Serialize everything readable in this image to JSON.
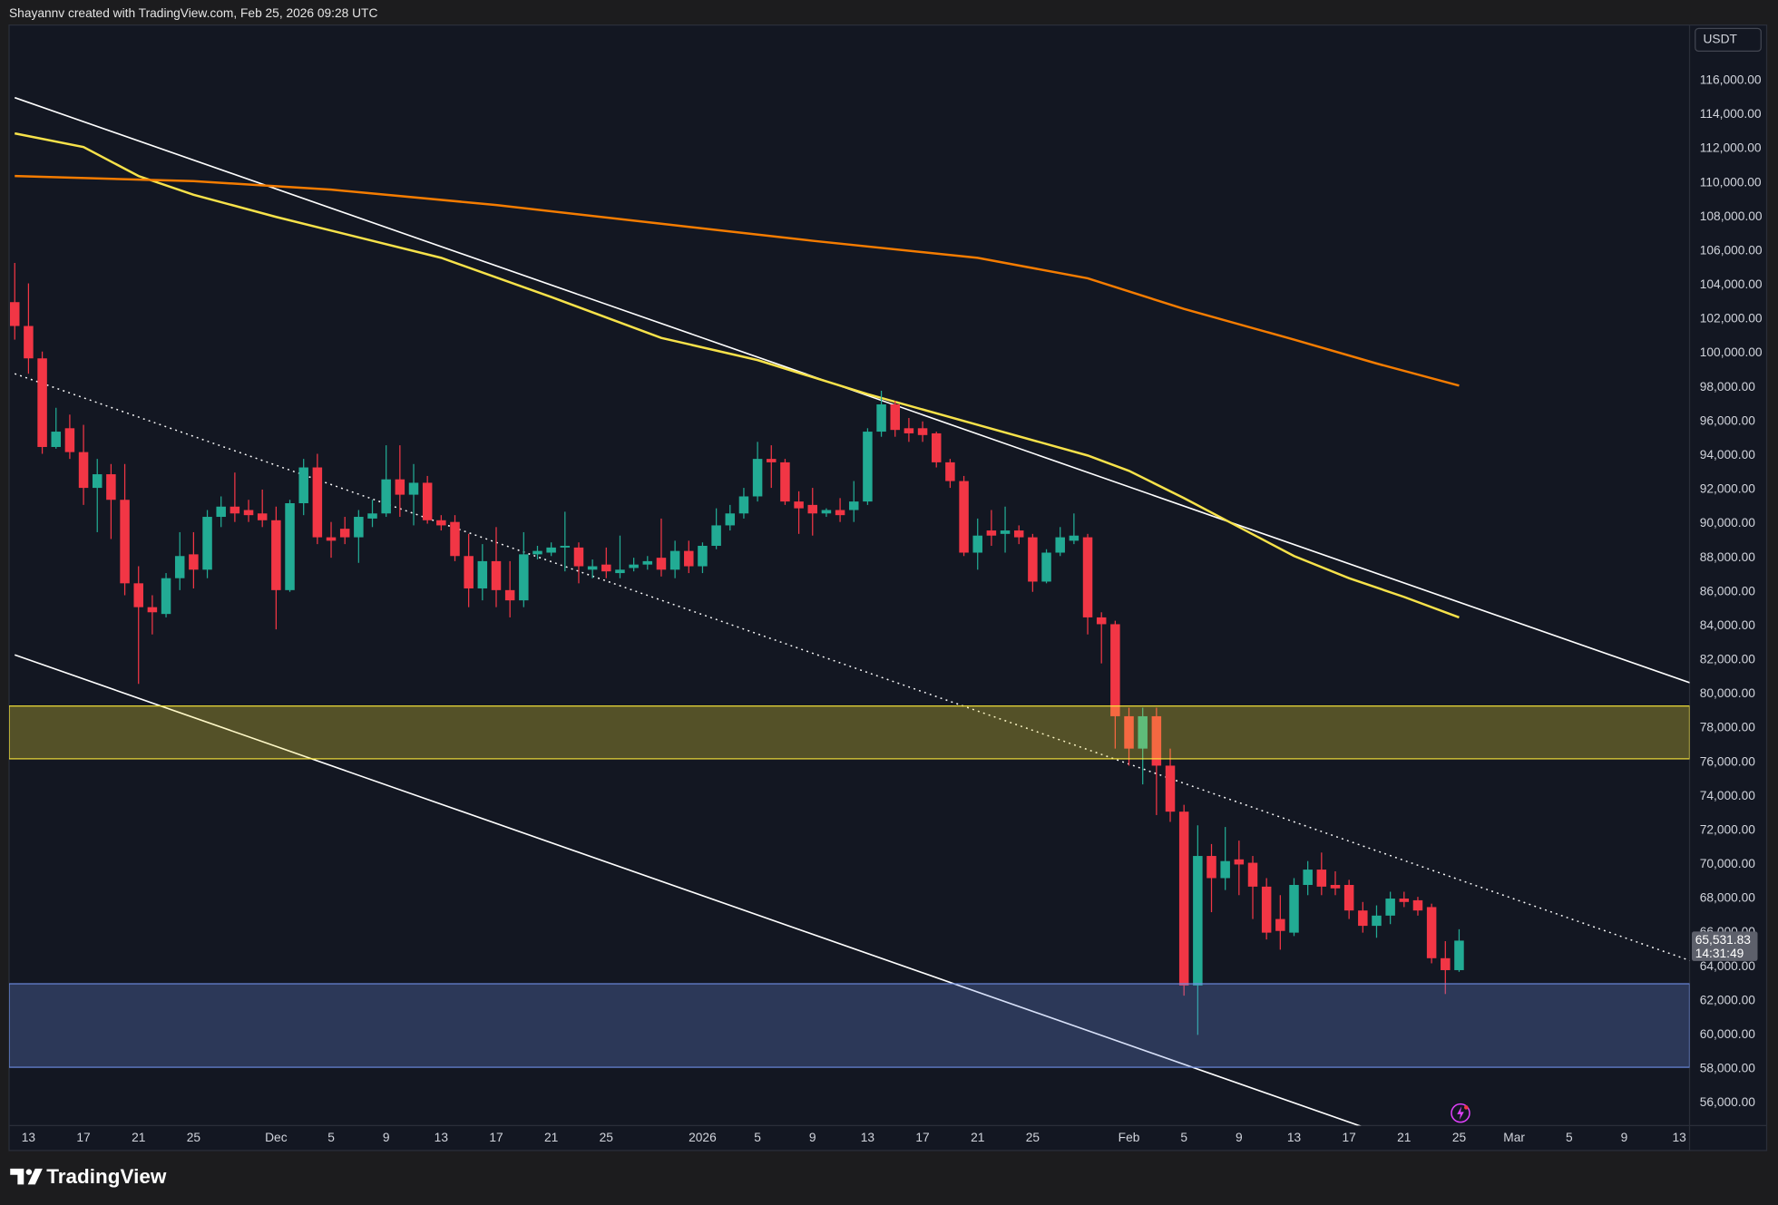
{
  "header": {
    "text": "Shayannv created with TradingView.com, Feb 25, 2026 09:28 UTC"
  },
  "footer": {
    "brand": "TradingView"
  },
  "chart_data": {
    "type": "candlestick",
    "currency": "USDT",
    "x": [
      "Nov 12",
      "Nov 13",
      "Nov 14",
      "Nov 15",
      "Nov 16",
      "Nov 17",
      "Nov 18",
      "Nov 19",
      "Nov 20",
      "Nov 21",
      "Nov 22",
      "Nov 23",
      "Nov 24",
      "Nov 25",
      "Nov 26",
      "Nov 27",
      "Nov 28",
      "Nov 29",
      "Nov 30",
      "Dec 1",
      "Dec 2",
      "Dec 3",
      "Dec 4",
      "Dec 5",
      "Dec 6",
      "Dec 7",
      "Dec 8",
      "Dec 9",
      "Dec 10",
      "Dec 11",
      "Dec 12",
      "Dec 13",
      "Dec 14",
      "Dec 15",
      "Dec 16",
      "Dec 17",
      "Dec 18",
      "Dec 19",
      "Dec 20",
      "Dec 21",
      "Dec 22",
      "Dec 23",
      "Dec 24",
      "Dec 25",
      "Dec 26",
      "Dec 27",
      "Dec 28",
      "Dec 29",
      "Dec 30",
      "Dec 31",
      "Jan 1",
      "Jan 2",
      "Jan 3",
      "Jan 4",
      "Jan 5",
      "Jan 6",
      "Jan 7",
      "Jan 8",
      "Jan 9",
      "Jan 10",
      "Jan 11",
      "Jan 12",
      "Jan 13",
      "Jan 14",
      "Jan 15",
      "Jan 16",
      "Jan 17",
      "Jan 18",
      "Jan 19",
      "Jan 20",
      "Jan 21",
      "Jan 22",
      "Jan 23",
      "Jan 24",
      "Jan 25",
      "Jan 26",
      "Jan 27",
      "Jan 28",
      "Jan 29",
      "Jan 30",
      "Jan 31",
      "Feb 1",
      "Feb 2",
      "Feb 3",
      "Feb 4",
      "Feb 5",
      "Feb 6",
      "Feb 7",
      "Feb 8",
      "Feb 9",
      "Feb 10",
      "Feb 11",
      "Feb 12",
      "Feb 13",
      "Feb 14",
      "Feb 15",
      "Feb 16",
      "Feb 17",
      "Feb 18",
      "Feb 19",
      "Feb 20",
      "Feb 21",
      "Feb 22",
      "Feb 23",
      "Feb 24",
      "Feb 25"
    ],
    "open": [
      103000,
      101600,
      99700,
      94500,
      95600,
      94200,
      92100,
      92900,
      91400,
      86500,
      85100,
      84700,
      86800,
      88200,
      87300,
      90400,
      91000,
      90800,
      90600,
      90200,
      86100,
      91200,
      93300,
      89200,
      89700,
      89200,
      90300,
      90600,
      92600,
      91700,
      92400,
      90200,
      90100,
      88100,
      86200,
      87800,
      86100,
      85500,
      88200,
      88300,
      88600,
      88600,
      87300,
      87600,
      87100,
      87400,
      87600,
      88000,
      87300,
      88400,
      87500,
      88700,
      89900,
      90600,
      91600,
      93800,
      93600,
      91300,
      91100,
      90600,
      90800,
      90800,
      91300,
      95400,
      97000,
      95600,
      95600,
      95300,
      93600,
      92500,
      88300,
      89600,
      89400,
      89600,
      89200,
      86600,
      88300,
      89000,
      89200,
      84500,
      84100,
      78700,
      76800,
      78700,
      75800,
      73100,
      62900,
      70500,
      69200,
      70300,
      70100,
      68700,
      66800,
      66000,
      68800,
      69700,
      68800,
      68800,
      67300,
      66400,
      67000,
      68000,
      67900,
      67500,
      64500,
      63800
    ],
    "high": [
      105300,
      104100,
      100100,
      96800,
      96400,
      95800,
      93800,
      93500,
      93500,
      87500,
      85800,
      87100,
      89500,
      89500,
      90800,
      91600,
      93000,
      91400,
      92000,
      91000,
      91400,
      93800,
      94100,
      90100,
      90400,
      90800,
      91400,
      94600,
      94600,
      93500,
      92800,
      90500,
      90500,
      89400,
      88800,
      89800,
      87800,
      89500,
      88700,
      88900,
      90700,
      88900,
      87900,
      88600,
      89300,
      88000,
      88100,
      90300,
      89000,
      89000,
      88900,
      90900,
      91100,
      92100,
      94800,
      94600,
      93800,
      91900,
      92100,
      90900,
      91500,
      92500,
      95600,
      97800,
      97200,
      96200,
      96000,
      95400,
      93800,
      92800,
      90300,
      90800,
      91000,
      89900,
      89400,
      88500,
      89800,
      90600,
      89400,
      84800,
      84300,
      79200,
      79200,
      79200,
      76800,
      73500,
      72300,
      71200,
      72200,
      71400,
      70500,
      69200,
      68200,
      69200,
      70200,
      70700,
      69600,
      69100,
      67800,
      67600,
      68400,
      68400,
      68100,
      67700,
      65500,
      66200
    ],
    "low": [
      100800,
      98800,
      94100,
      94400,
      93800,
      91100,
      89500,
      89100,
      85800,
      80600,
      83500,
      84500,
      86100,
      86200,
      86800,
      89800,
      90100,
      90100,
      89800,
      83800,
      86000,
      90500,
      88800,
      88000,
      88800,
      87700,
      89800,
      90400,
      90400,
      89900,
      90000,
      89600,
      87800,
      85100,
      85500,
      85100,
      84500,
      85100,
      87900,
      88100,
      87200,
      86500,
      86800,
      86800,
      86800,
      87200,
      87300,
      86900,
      86800,
      87100,
      87100,
      88500,
      89600,
      90300,
      91300,
      92100,
      91100,
      89400,
      89300,
      90400,
      90100,
      90100,
      91100,
      95100,
      95100,
      94800,
      94800,
      93300,
      92100,
      88100,
      87300,
      88700,
      88300,
      88800,
      86000,
      86500,
      88100,
      88800,
      83500,
      81800,
      76800,
      75800,
      74700,
      72900,
      72500,
      62300,
      60000,
      67200,
      68500,
      68200,
      66800,
      65600,
      65000,
      65800,
      68200,
      68200,
      68200,
      66800,
      66000,
      65700,
      66500,
      67500,
      67000,
      64200,
      62400,
      63700
    ],
    "close": [
      101600,
      99700,
      94500,
      95400,
      94200,
      92100,
      92900,
      91400,
      86500,
      85100,
      84800,
      86800,
      88100,
      87300,
      90400,
      91000,
      90600,
      90500,
      90200,
      86100,
      91200,
      93300,
      89200,
      89000,
      89200,
      90400,
      90600,
      92600,
      91700,
      92400,
      90200,
      89900,
      88100,
      86200,
      87800,
      86100,
      85500,
      88200,
      88400,
      88600,
      88700,
      87500,
      87500,
      87200,
      87300,
      87600,
      87800,
      87300,
      88400,
      87500,
      88700,
      89900,
      90600,
      91600,
      93800,
      93600,
      91300,
      90900,
      90600,
      90800,
      90500,
      91300,
      95400,
      97000,
      95500,
      95300,
      95200,
      93600,
      92500,
      88300,
      89300,
      89300,
      89600,
      89200,
      86600,
      88300,
      89200,
      89300,
      84500,
      84100,
      78700,
      76800,
      78700,
      75800,
      73100,
      62900,
      70500,
      69200,
      70200,
      70000,
      68700,
      66000,
      66100,
      68800,
      69700,
      68700,
      68600,
      67300,
      66400,
      67000,
      68000,
      67800,
      67300,
      64500,
      63800,
      65531.83
    ],
    "up_color": "#22ab94",
    "down_color": "#f23645",
    "xlim": [
      "Nov 12",
      "Mar 14"
    ],
    "xticks": [
      {
        "value": "Nov 13",
        "label": "13"
      },
      {
        "value": "Nov 17",
        "label": "17"
      },
      {
        "value": "Nov 21",
        "label": "21"
      },
      {
        "value": "Nov 25",
        "label": "25"
      },
      {
        "value": "Dec 1",
        "label": "Dec"
      },
      {
        "value": "Dec 5",
        "label": "5"
      },
      {
        "value": "Dec 9",
        "label": "9"
      },
      {
        "value": "Dec 13",
        "label": "13"
      },
      {
        "value": "Dec 17",
        "label": "17"
      },
      {
        "value": "Dec 21",
        "label": "21"
      },
      {
        "value": "Dec 25",
        "label": "25"
      },
      {
        "value": "Jan 1",
        "label": "2026"
      },
      {
        "value": "Jan 5",
        "label": "5"
      },
      {
        "value": "Jan 9",
        "label": "9"
      },
      {
        "value": "Jan 13",
        "label": "13"
      },
      {
        "value": "Jan 17",
        "label": "17"
      },
      {
        "value": "Jan 21",
        "label": "21"
      },
      {
        "value": "Jan 25",
        "label": "25"
      },
      {
        "value": "Feb 1",
        "label": "Feb"
      },
      {
        "value": "Feb 5",
        "label": "5"
      },
      {
        "value": "Feb 9",
        "label": "9"
      },
      {
        "value": "Feb 13",
        "label": "13"
      },
      {
        "value": "Feb 17",
        "label": "17"
      },
      {
        "value": "Feb 21",
        "label": "21"
      },
      {
        "value": "Feb 25",
        "label": "25"
      },
      {
        "value": "Mar 1",
        "label": "Mar"
      },
      {
        "value": "Mar 5",
        "label": "5"
      },
      {
        "value": "Mar 9",
        "label": "9"
      },
      {
        "value": "Mar 13",
        "label": "13"
      }
    ],
    "ylim": [
      54680,
      119260
    ],
    "yticks": [
      {
        "value": 116000,
        "label": "116,000.00"
      },
      {
        "value": 114000,
        "label": "114,000.00"
      },
      {
        "value": 112000,
        "label": "112,000.00"
      },
      {
        "value": 110000,
        "label": "110,000.00"
      },
      {
        "value": 108000,
        "label": "108,000.00"
      },
      {
        "value": 106000,
        "label": "106,000.00"
      },
      {
        "value": 104000,
        "label": "104,000.00"
      },
      {
        "value": 102000,
        "label": "102,000.00"
      },
      {
        "value": 100000,
        "label": "100,000.00"
      },
      {
        "value": 98000,
        "label": "98,000.00"
      },
      {
        "value": 96000,
        "label": "96,000.00"
      },
      {
        "value": 94000,
        "label": "94,000.00"
      },
      {
        "value": 92000,
        "label": "92,000.00"
      },
      {
        "value": 90000,
        "label": "90,000.00"
      },
      {
        "value": 88000,
        "label": "88,000.00"
      },
      {
        "value": 86000,
        "label": "86,000.00"
      },
      {
        "value": 84000,
        "label": "84,000.00"
      },
      {
        "value": 82000,
        "label": "82,000.00"
      },
      {
        "value": 80000,
        "label": "80,000.00"
      },
      {
        "value": 78000,
        "label": "78,000.00"
      },
      {
        "value": 76000,
        "label": "76,000.00"
      },
      {
        "value": 74000,
        "label": "74,000.00"
      },
      {
        "value": 72000,
        "label": "72,000.00"
      },
      {
        "value": 70000,
        "label": "70,000.00"
      },
      {
        "value": 68000,
        "label": "68,000.00"
      },
      {
        "value": 66000,
        "label": "66,000.00"
      },
      {
        "value": 64000,
        "label": "64,000.00"
      },
      {
        "value": 62000,
        "label": "62,000.00"
      },
      {
        "value": 60000,
        "label": "60,000.00"
      },
      {
        "value": 58000,
        "label": "58,000.00"
      },
      {
        "value": 56000,
        "label": "56,000.00"
      }
    ],
    "last_price": {
      "value": 65531.83,
      "label": "65,531.83"
    },
    "countdown": "14:31:49",
    "moving_averages": [
      {
        "color": "#f7e24a",
        "x": [
          "Nov 12",
          "Nov 17",
          "Nov 21",
          "Nov 25",
          "Dec 1",
          "Dec 5",
          "Dec 13",
          "Dec 21",
          "Dec 29",
          "Jan 5",
          "Jan 13",
          "Jan 21",
          "Jan 29",
          "Feb 1",
          "Feb 5",
          "Feb 9",
          "Feb 13",
          "Feb 17",
          "Feb 21",
          "Feb 25"
        ],
        "values": [
          112900,
          112100,
          110400,
          109300,
          108000,
          107200,
          105600,
          103300,
          100900,
          99600,
          97600,
          95800,
          94000,
          93100,
          91500,
          89800,
          88100,
          86800,
          85700,
          84500
        ]
      },
      {
        "color": "#f57c00",
        "x": [
          "Nov 12",
          "Nov 25",
          "Dec 5",
          "Dec 17",
          "Dec 29",
          "Jan 9",
          "Jan 21",
          "Jan 29",
          "Feb 5",
          "Feb 13",
          "Feb 19",
          "Feb 25"
        ],
        "values": [
          110400,
          110100,
          109600,
          108700,
          107600,
          106600,
          105600,
          104400,
          102600,
          100800,
          99400,
          98100
        ]
      }
    ],
    "trendlines": [
      {
        "color": "#ffffff",
        "style": "solid",
        "x": [
          "Nov 12",
          "Mar 14"
        ],
        "values": [
          115000,
          80600
        ]
      },
      {
        "color": "#ffffff",
        "style": "solid",
        "x": [
          "Nov 12",
          "Feb 18"
        ],
        "values": [
          82300,
          54600
        ]
      },
      {
        "color": "#ffffff",
        "style": "dotted",
        "x": [
          "Nov 12",
          "Mar 14"
        ],
        "values": [
          98800,
          64300
        ]
      }
    ],
    "zones": [
      {
        "color": "#ffeb3b",
        "from": 76200,
        "to": 79300
      },
      {
        "color": "#6f8fe6",
        "from": 58100,
        "to": 63000
      }
    ]
  }
}
